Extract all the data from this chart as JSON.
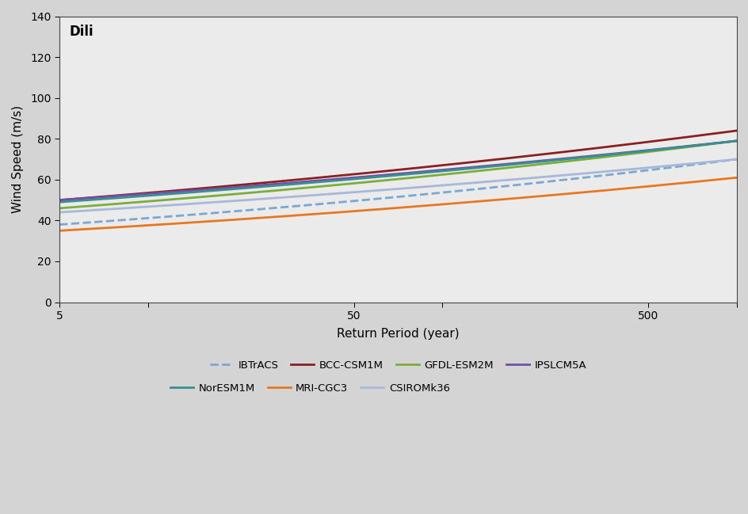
{
  "title": "Dili",
  "xlabel": "Return Period (year)",
  "ylabel": "Wind Speed (m/s)",
  "ylim": [
    0,
    140
  ],
  "yticks": [
    0,
    20,
    40,
    60,
    80,
    100,
    120,
    140
  ],
  "xlim": [
    5,
    1000
  ],
  "plot_bgcolor": "#ebebeb",
  "fig_bgcolor": "#d4d4d4",
  "series": [
    {
      "label": "IBTrACS",
      "color": "#7aa8d2",
      "linestyle": "--",
      "linewidth": 2.0,
      "y5": 38,
      "y1000": 70
    },
    {
      "label": "BCC-CSM1M",
      "color": "#8b2020",
      "linestyle": "-",
      "linewidth": 2.0,
      "y5": 50,
      "y1000": 84
    },
    {
      "label": "GFDL-ESM2M",
      "color": "#7aad3a",
      "linestyle": "-",
      "linewidth": 2.0,
      "y5": 46,
      "y1000": 79
    },
    {
      "label": "IPSLCM5A",
      "color": "#7050a8",
      "linestyle": "-",
      "linewidth": 2.0,
      "y5": 50,
      "y1000": 79
    },
    {
      "label": "NorESM1M",
      "color": "#3a9090",
      "linestyle": "-",
      "linewidth": 2.0,
      "y5": 49,
      "y1000": 79
    },
    {
      "label": "MRI-CGC3",
      "color": "#e87820",
      "linestyle": "-",
      "linewidth": 2.0,
      "y5": 35,
      "y1000": 61
    },
    {
      "label": "CSIROMk36",
      "color": "#a8b8d8",
      "linestyle": "-",
      "linewidth": 2.0,
      "y5": 44,
      "y1000": 70
    }
  ],
  "legend_order": [
    "IBTrACS",
    "BCC-CSM1M",
    "GFDL-ESM2M",
    "IPSLCM5A",
    "NorESM1M",
    "MRI-CGC3",
    "CSIROMk36"
  ]
}
